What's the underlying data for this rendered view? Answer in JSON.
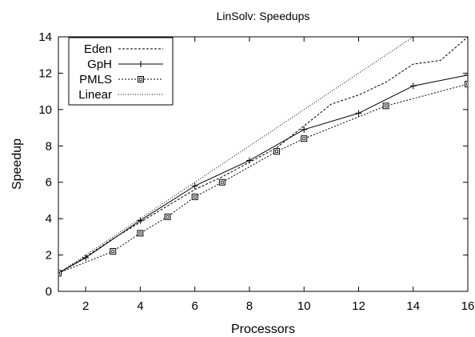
{
  "chart_data": {
    "type": "line",
    "title": "LinSolv: Speedups",
    "xlabel": "Processors",
    "ylabel": "Speedup",
    "xlim": [
      1,
      16
    ],
    "ylim": [
      0,
      14
    ],
    "xticks": [
      2,
      4,
      6,
      8,
      10,
      12,
      14,
      16
    ],
    "yticks": [
      0,
      2,
      4,
      6,
      8,
      10,
      12,
      14
    ],
    "grid": false,
    "legend_position": "top-left",
    "series": [
      {
        "name": "Eden",
        "style": "dashed",
        "marker": "none",
        "x": [
          1,
          2,
          3,
          4,
          5,
          6,
          7,
          8,
          9,
          10,
          11,
          12,
          13,
          14,
          15,
          16
        ],
        "y": [
          1,
          1.9,
          2.9,
          3.8,
          4.7,
          5.6,
          6.3,
          7.1,
          7.9,
          9.1,
          10.3,
          10.8,
          11.5,
          12.5,
          12.7,
          14.0
        ]
      },
      {
        "name": "GpH",
        "style": "solid",
        "marker": "plus",
        "x": [
          1,
          2,
          4,
          6,
          8,
          10,
          12,
          14,
          16
        ],
        "y": [
          1,
          1.85,
          3.9,
          5.8,
          7.2,
          8.9,
          9.8,
          11.3,
          11.9
        ]
      },
      {
        "name": "PMLS",
        "style": "dotted",
        "marker": "square",
        "x": [
          1,
          3,
          4,
          5,
          6,
          7,
          9,
          10,
          13,
          16
        ],
        "y": [
          1,
          2.2,
          3.2,
          4.1,
          5.2,
          6.0,
          7.7,
          8.4,
          10.2,
          11.4
        ]
      },
      {
        "name": "Linear",
        "style": "fine-dotted",
        "marker": "none",
        "x": [
          1,
          16
        ],
        "y": [
          1,
          16
        ]
      }
    ]
  }
}
